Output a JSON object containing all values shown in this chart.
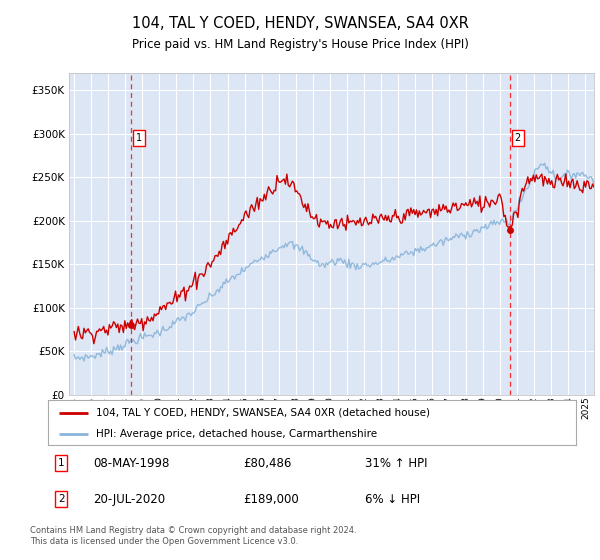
{
  "title": "104, TAL Y COED, HENDY, SWANSEA, SA4 0XR",
  "subtitle": "Price paid vs. HM Land Registry's House Price Index (HPI)",
  "ylabel_ticks": [
    0,
    50000,
    100000,
    150000,
    200000,
    250000,
    300000,
    350000
  ],
  "ylabel_labels": [
    "£0",
    "£50K",
    "£100K",
    "£150K",
    "£200K",
    "£250K",
    "£300K",
    "£350K"
  ],
  "xlim_start": 1994.7,
  "xlim_end": 2025.5,
  "ylim_min": 0,
  "ylim_max": 370000,
  "plot_bg_color": "#dce6f5",
  "fig_bg_color": "#ffffff",
  "grid_color": "#ffffff",
  "red_line_color": "#cc0000",
  "blue_line_color": "#89b4d9",
  "sale1_date_num": 1998.355,
  "sale1_price": 80486,
  "sale2_date_num": 2020.548,
  "sale2_price": 189000,
  "legend_line1": "104, TAL Y COED, HENDY, SWANSEA, SA4 0XR (detached house)",
  "legend_line2": "HPI: Average price, detached house, Carmarthenshire",
  "sale1_text": "08-MAY-1998",
  "sale1_price_text": "£80,486",
  "sale1_hpi_text": "31% ↑ HPI",
  "sale2_text": "20-JUL-2020",
  "sale2_price_text": "£189,000",
  "sale2_hpi_text": "6% ↓ HPI",
  "footnote": "Contains HM Land Registry data © Crown copyright and database right 2024.\nThis data is licensed under the Open Government Licence v3.0."
}
